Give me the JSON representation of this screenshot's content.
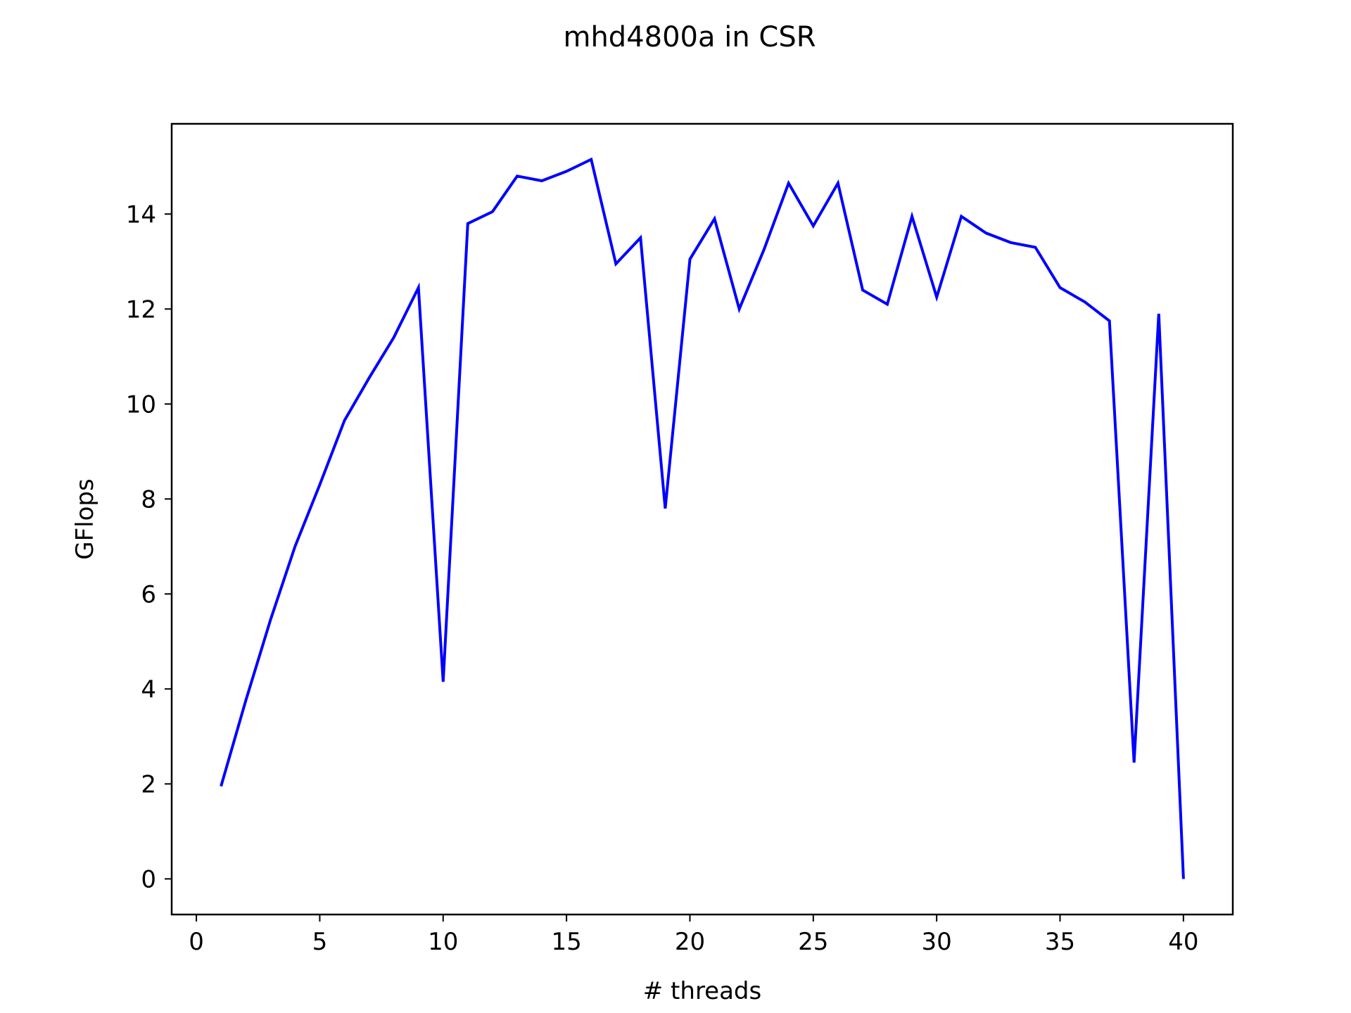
{
  "chart_data": {
    "type": "line",
    "title": "mhd4800a in CSR",
    "xlabel": "# threads",
    "ylabel": "GFlops",
    "xlim": [
      -1,
      42
    ],
    "ylim": [
      -0.75,
      15.9
    ],
    "xticks": [
      0,
      5,
      10,
      15,
      20,
      25,
      30,
      35,
      40
    ],
    "yticks": [
      0,
      2,
      4,
      6,
      8,
      10,
      12,
      14
    ],
    "grid": false,
    "series": [
      {
        "color": "#0000ff",
        "x": [
          1,
          2,
          3,
          4,
          5,
          6,
          7,
          8,
          9,
          10,
          11,
          12,
          13,
          14,
          15,
          16,
          17,
          18,
          19,
          20,
          21,
          22,
          23,
          24,
          25,
          26,
          27,
          28,
          29,
          30,
          31,
          32,
          33,
          34,
          35,
          36,
          37,
          38,
          39,
          40
        ],
        "values": [
          1.95,
          3.75,
          5.45,
          7.0,
          8.3,
          9.65,
          10.55,
          11.4,
          12.45,
          4.15,
          13.8,
          14.05,
          14.8,
          14.7,
          14.9,
          15.15,
          12.95,
          13.5,
          7.8,
          13.05,
          13.9,
          12.0,
          13.25,
          14.65,
          13.75,
          14.65,
          12.4,
          12.1,
          13.95,
          12.25,
          13.95,
          13.6,
          13.4,
          13.3,
          12.45,
          12.15,
          11.75,
          2.45,
          11.9,
          0.0
        ]
      }
    ]
  }
}
